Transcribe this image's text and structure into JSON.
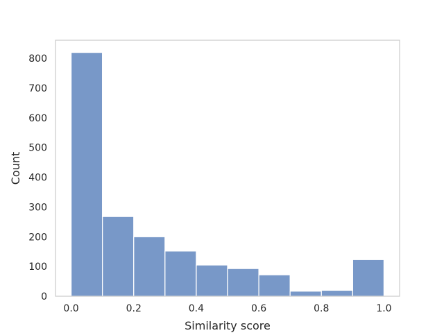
{
  "chart_data": {
    "type": "bar",
    "subtype": "histogram",
    "title": "",
    "xlabel": "Similarity score",
    "ylabel": "Count",
    "bin_edges": [
      0.0,
      0.1,
      0.2,
      0.3,
      0.4,
      0.5,
      0.6,
      0.7,
      0.8,
      0.9,
      1.0
    ],
    "values": [
      820,
      268,
      200,
      152,
      105,
      93,
      72,
      17,
      20,
      123
    ],
    "xlim": [
      -0.05,
      1.05
    ],
    "ylim": [
      0,
      861
    ],
    "xticks": [
      0.0,
      0.2,
      0.4,
      0.6,
      0.8,
      1.0
    ],
    "xtick_labels": [
      "0.0",
      "0.2",
      "0.4",
      "0.6",
      "0.8",
      "1.0"
    ],
    "yticks": [
      0,
      100,
      200,
      300,
      400,
      500,
      600,
      700,
      800
    ],
    "ytick_labels": [
      "0",
      "100",
      "200",
      "300",
      "400",
      "500",
      "600",
      "700",
      "800"
    ],
    "grid": false,
    "bar_color": "#7898c8",
    "bar_edge_color": "#ffffff",
    "frame_color": "#cccccc"
  }
}
